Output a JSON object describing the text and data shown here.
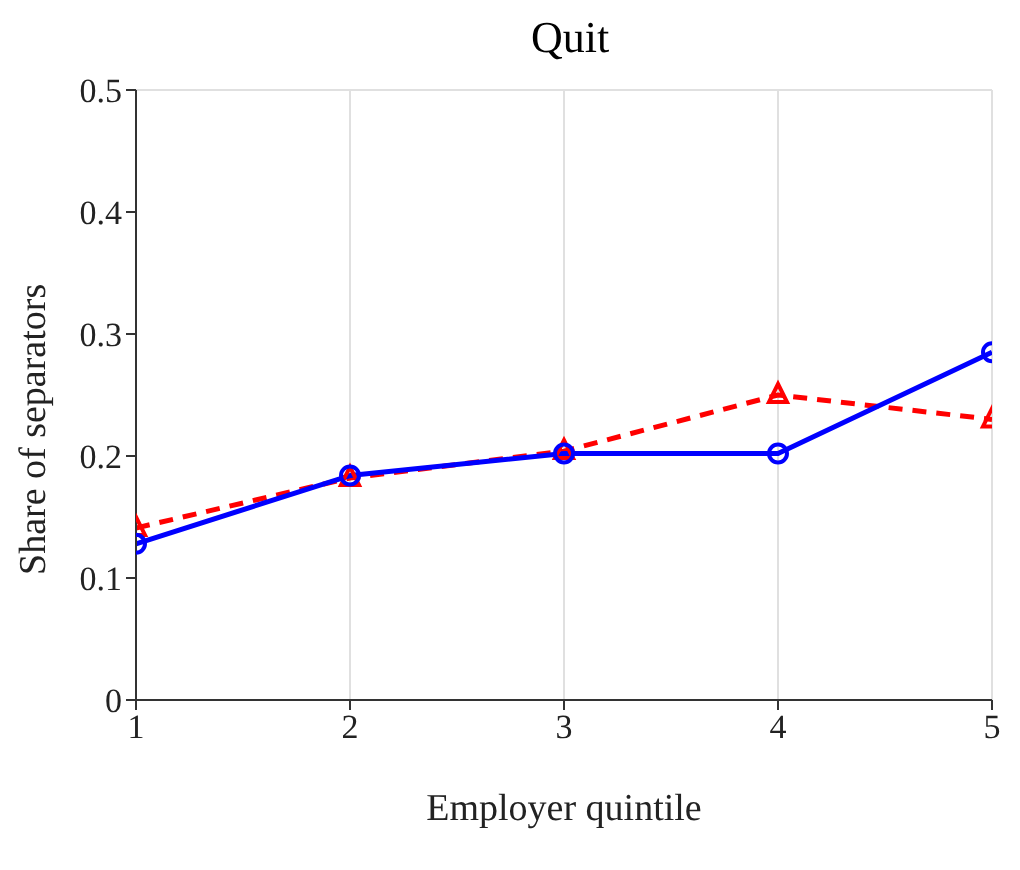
{
  "chart_data": {
    "type": "line",
    "title": "Quit",
    "xlabel": "Employer quintile",
    "ylabel": "Share of separators",
    "x": [
      1,
      2,
      3,
      4,
      5
    ],
    "series": [
      {
        "color": "#ff0000",
        "values": [
          0.141,
          0.182,
          0.204,
          0.25,
          0.23
        ],
        "marker": "triangle",
        "line_style": "dashed"
      },
      {
        "color": "#0000ff",
        "values": [
          0.128,
          0.184,
          0.202,
          0.202,
          0.285
        ],
        "marker": "circle",
        "line_style": "solid"
      }
    ],
    "xlim": [
      1,
      5
    ],
    "xticks": [
      1,
      2,
      3,
      4,
      5
    ],
    "ylim": [
      0,
      0.5
    ],
    "yticks": [
      0,
      0.1,
      0.2,
      0.3,
      0.4,
      0.5
    ],
    "grid": true
  }
}
